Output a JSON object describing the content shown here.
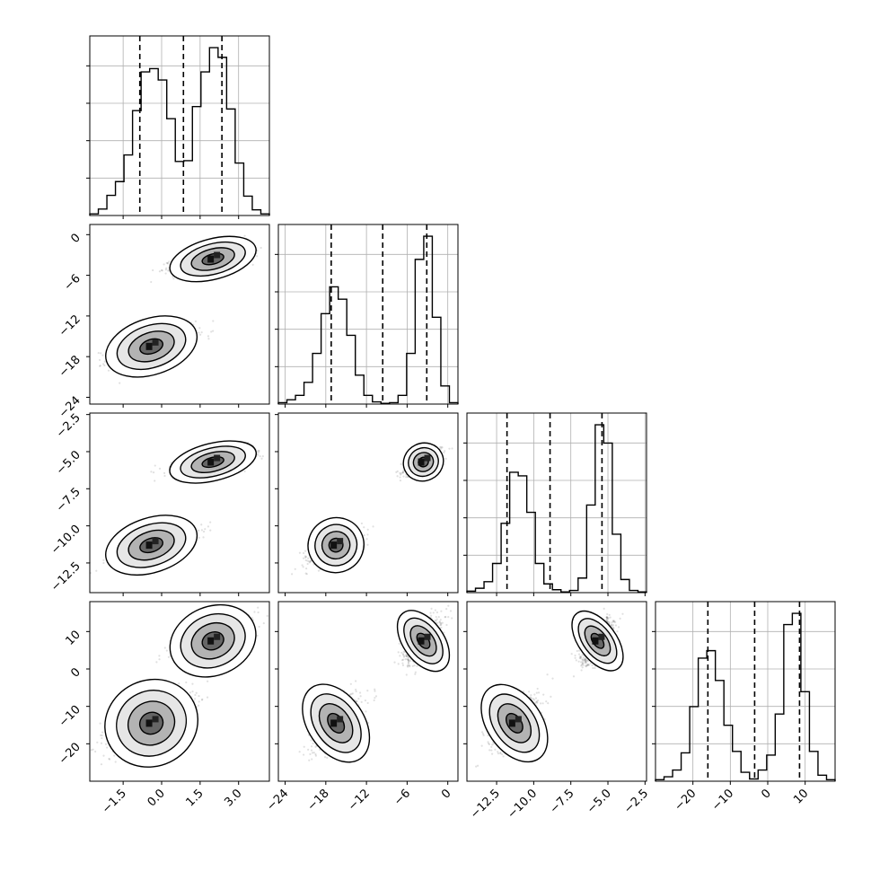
{
  "chart_data": {
    "type": "corner",
    "variables": [
      {
        "index": 0,
        "range": [
          -2.8,
          4.2
        ],
        "ticks": [
          {
            "v": -1.5,
            "label": "−1.5"
          },
          {
            "v": 0.0,
            "label": "0.0"
          },
          {
            "v": 1.5,
            "label": "1.5"
          },
          {
            "v": 3.0,
            "label": "3.0"
          }
        ],
        "quantiles": [
          -0.85,
          0.85,
          2.35
        ]
      },
      {
        "index": 1,
        "range": [
          -25.0,
          1.5
        ],
        "ticks": [
          {
            "v": -24,
            "label": "−24"
          },
          {
            "v": -18,
            "label": "−18"
          },
          {
            "v": -12,
            "label": "−12"
          },
          {
            "v": -6,
            "label": "−6"
          },
          {
            "v": 0,
            "label": "0"
          }
        ],
        "quantiles": [
          -17.2,
          -9.6,
          -3.1
        ]
      },
      {
        "index": 2,
        "range": [
          -14.5,
          -2.4
        ],
        "ticks": [
          {
            "v": -12.5,
            "label": "−12.5"
          },
          {
            "v": -10.0,
            "label": "−10.0"
          },
          {
            "v": -7.5,
            "label": "−7.5"
          },
          {
            "v": -5.0,
            "label": "−5.0"
          },
          {
            "v": -2.5,
            "label": "−2.5"
          }
        ],
        "quantiles": [
          -11.8,
          -8.9,
          -5.4
        ]
      },
      {
        "index": 3,
        "range": [
          -30.0,
          18.0
        ],
        "ticks": [
          {
            "v": -20,
            "label": "−20"
          },
          {
            "v": -10,
            "label": "−10"
          },
          {
            "v": 0,
            "label": "0"
          },
          {
            "v": 10,
            "label": "10"
          }
        ],
        "quantiles": [
          -16.0,
          -3.5,
          8.5
        ]
      }
    ],
    "histograms": [
      {
        "var": 0,
        "counts": [
          2,
          8,
          25,
          42,
          75,
          130,
          178,
          182,
          168,
          120,
          67,
          68,
          135,
          178,
          208,
          196,
          132,
          65,
          24,
          7,
          2
        ]
      },
      {
        "var": 1,
        "counts": [
          2,
          6,
          12,
          30,
          70,
          125,
          162,
          145,
          95,
          40,
          12,
          3,
          1,
          2,
          12,
          70,
          200,
          232,
          120,
          25,
          2
        ]
      },
      {
        "var": 2,
        "counts": [
          2,
          6,
          15,
          40,
          95,
          165,
          160,
          110,
          40,
          12,
          4,
          1,
          3,
          20,
          120,
          230,
          205,
          80,
          18,
          3,
          1
        ]
      },
      {
        "var": 3,
        "counts": [
          2,
          6,
          15,
          38,
          100,
          165,
          175,
          135,
          75,
          40,
          12,
          3,
          15,
          35,
          90,
          210,
          225,
          120,
          40,
          8,
          2
        ]
      }
    ],
    "histogram_bin_count": 21,
    "mixture_components": [
      {
        "weight": 0.46,
        "mean": [
          -0.4,
          -16.5,
          -11.3,
          -14.5
        ],
        "std": [
          0.8,
          1.8,
          0.8,
          5.0
        ]
      },
      {
        "weight": 0.54,
        "mean": [
          2.0,
          -3.6,
          -5.7,
          7.5
        ],
        "std": [
          0.75,
          1.3,
          0.55,
          4.0
        ]
      }
    ],
    "contour_levels_sigma": [
      0.5,
      1.0,
      1.5,
      2.0
    ],
    "grid": true,
    "quantile_line_style": "dashed",
    "title": "",
    "xlabel": "",
    "ylabel": ""
  }
}
